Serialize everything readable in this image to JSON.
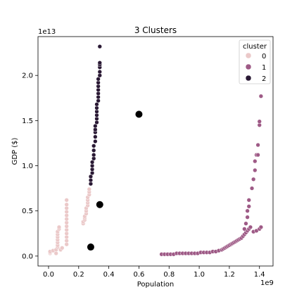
{
  "chart_data": {
    "type": "scatter",
    "title": "3 Clusters",
    "xlabel": "Population",
    "ylabel": "GDP ($)",
    "x_offset_label": "1e9",
    "y_offset_label": "1e13",
    "xlim": [
      -0.07,
      1.49
    ],
    "ylim": [
      -0.11,
      2.43
    ],
    "xticks": [
      0.0,
      0.2,
      0.4,
      0.6,
      0.8,
      1.0,
      1.2,
      1.4
    ],
    "yticks": [
      0.0,
      0.5,
      1.0,
      1.5,
      2.0
    ],
    "xtick_labels": [
      "0.0",
      "0.2",
      "0.4",
      "0.6",
      "0.8",
      "1.0",
      "1.2",
      "1.4"
    ],
    "ytick_labels": [
      "0.0",
      "0.5",
      "1.0",
      "1.5",
      "2.0"
    ],
    "legend": {
      "title": "cluster",
      "placement": "top-right",
      "entries": [
        "0",
        "1",
        "2"
      ]
    },
    "colors": {
      "0": "#ebc9c9",
      "1": "#9e5a86",
      "2": "#2a1934",
      "centroid": "#000000"
    },
    "series": [
      {
        "name": "0",
        "points": [
          [
            0.01,
            0.03
          ],
          [
            0.01,
            0.04
          ],
          [
            0.01,
            0.05
          ],
          [
            0.03,
            0.06
          ],
          [
            0.05,
            0.03
          ],
          [
            0.05,
            0.07
          ],
          [
            0.06,
            0.1
          ],
          [
            0.06,
            0.12
          ],
          [
            0.06,
            0.15
          ],
          [
            0.06,
            0.18
          ],
          [
            0.06,
            0.21
          ],
          [
            0.06,
            0.24
          ],
          [
            0.06,
            0.27
          ],
          [
            0.07,
            0.3
          ],
          [
            0.07,
            0.32
          ],
          [
            0.08,
            0.07
          ],
          [
            0.09,
            0.09
          ],
          [
            0.12,
            0.13
          ],
          [
            0.12,
            0.17
          ],
          [
            0.12,
            0.21
          ],
          [
            0.12,
            0.25
          ],
          [
            0.12,
            0.29
          ],
          [
            0.12,
            0.33
          ],
          [
            0.12,
            0.37
          ],
          [
            0.12,
            0.41
          ],
          [
            0.12,
            0.45
          ],
          [
            0.12,
            0.49
          ],
          [
            0.12,
            0.53
          ],
          [
            0.12,
            0.57
          ],
          [
            0.12,
            0.62
          ],
          [
            0.23,
            0.36
          ],
          [
            0.23,
            0.38
          ],
          [
            0.24,
            0.4
          ],
          [
            0.24,
            0.42
          ],
          [
            0.24,
            0.44
          ],
          [
            0.25,
            0.47
          ],
          [
            0.25,
            0.5
          ],
          [
            0.25,
            0.53
          ],
          [
            0.26,
            0.56
          ],
          [
            0.26,
            0.59
          ],
          [
            0.26,
            0.62
          ],
          [
            0.26,
            0.65
          ],
          [
            0.27,
            0.68
          ],
          [
            0.27,
            0.71
          ],
          [
            0.27,
            0.74
          ]
        ]
      },
      {
        "name": "1",
        "points": [
          [
            0.75,
            0.02
          ],
          [
            0.77,
            0.02
          ],
          [
            0.79,
            0.02
          ],
          [
            0.81,
            0.02
          ],
          [
            0.83,
            0.02
          ],
          [
            0.85,
            0.03
          ],
          [
            0.87,
            0.03
          ],
          [
            0.89,
            0.03
          ],
          [
            0.91,
            0.03
          ],
          [
            0.93,
            0.03
          ],
          [
            0.95,
            0.03
          ],
          [
            0.97,
            0.03
          ],
          [
            0.99,
            0.03
          ],
          [
            1.01,
            0.04
          ],
          [
            1.03,
            0.04
          ],
          [
            1.05,
            0.04
          ],
          [
            1.07,
            0.04
          ],
          [
            1.09,
            0.05
          ],
          [
            1.11,
            0.05
          ],
          [
            1.13,
            0.06
          ],
          [
            1.15,
            0.07
          ],
          [
            1.16,
            0.08
          ],
          [
            1.17,
            0.09
          ],
          [
            1.18,
            0.1
          ],
          [
            1.19,
            0.11
          ],
          [
            1.2,
            0.12
          ],
          [
            1.21,
            0.13
          ],
          [
            1.22,
            0.14
          ],
          [
            1.23,
            0.15
          ],
          [
            1.24,
            0.16
          ],
          [
            1.25,
            0.17
          ],
          [
            1.26,
            0.18
          ],
          [
            1.27,
            0.19
          ],
          [
            1.28,
            0.2
          ],
          [
            1.29,
            0.22
          ],
          [
            1.3,
            0.24
          ],
          [
            1.31,
            0.26
          ],
          [
            1.32,
            0.28
          ],
          [
            1.33,
            0.3
          ],
          [
            1.34,
            0.32
          ],
          [
            1.3,
            0.3
          ],
          [
            1.31,
            0.36
          ],
          [
            1.32,
            0.43
          ],
          [
            1.32,
            0.5
          ],
          [
            1.33,
            0.55
          ],
          [
            1.33,
            0.62
          ],
          [
            1.35,
            0.75
          ],
          [
            1.36,
            0.85
          ],
          [
            1.37,
            0.95
          ],
          [
            1.37,
            1.05
          ],
          [
            1.38,
            1.12
          ],
          [
            1.39,
            1.12
          ],
          [
            1.39,
            1.23
          ],
          [
            1.4,
            1.45
          ],
          [
            1.4,
            1.49
          ],
          [
            1.41,
            1.77
          ],
          [
            1.36,
            0.27
          ],
          [
            1.38,
            0.28
          ],
          [
            1.4,
            0.3
          ],
          [
            1.41,
            0.32
          ]
        ]
      },
      {
        "name": "2",
        "points": [
          [
            0.28,
            0.8
          ],
          [
            0.28,
            0.84
          ],
          [
            0.28,
            0.88
          ],
          [
            0.29,
            0.92
          ],
          [
            0.29,
            0.96
          ],
          [
            0.29,
            1.0
          ],
          [
            0.29,
            1.04
          ],
          [
            0.3,
            1.08
          ],
          [
            0.3,
            1.12
          ],
          [
            0.3,
            1.17
          ],
          [
            0.3,
            1.22
          ],
          [
            0.31,
            1.27
          ],
          [
            0.31,
            1.32
          ],
          [
            0.31,
            1.37
          ],
          [
            0.31,
            1.4
          ],
          [
            0.31,
            1.44
          ],
          [
            0.32,
            1.48
          ],
          [
            0.32,
            1.52
          ],
          [
            0.32,
            1.56
          ],
          [
            0.32,
            1.6
          ],
          [
            0.32,
            1.64
          ],
          [
            0.32,
            1.68
          ],
          [
            0.33,
            1.72
          ],
          [
            0.33,
            1.76
          ],
          [
            0.33,
            1.8
          ],
          [
            0.33,
            1.84
          ],
          [
            0.33,
            1.88
          ],
          [
            0.33,
            1.92
          ],
          [
            0.33,
            1.96
          ],
          [
            0.34,
            2.0
          ],
          [
            0.34,
            2.04
          ],
          [
            0.34,
            2.09
          ],
          [
            0.34,
            2.12
          ],
          [
            0.34,
            2.14
          ],
          [
            0.34,
            2.32
          ]
        ]
      }
    ],
    "centroids": [
      {
        "name": "centroid-0",
        "x": 0.28,
        "y": 0.1
      },
      {
        "name": "centroid-1",
        "x": 0.34,
        "y": 0.57
      },
      {
        "name": "centroid-2",
        "x": 0.6,
        "y": 1.57
      }
    ]
  }
}
